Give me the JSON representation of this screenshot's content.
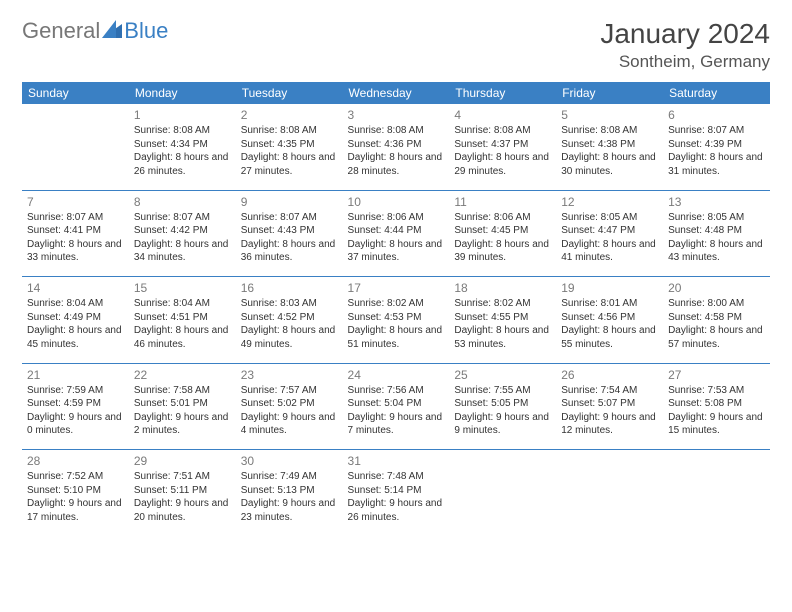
{
  "brand": {
    "part1": "General",
    "part2": "Blue"
  },
  "title": "January 2024",
  "location": "Sontheim, Germany",
  "weekday_header_bg": "#3a80c4",
  "weekdays": [
    "Sunday",
    "Monday",
    "Tuesday",
    "Wednesday",
    "Thursday",
    "Friday",
    "Saturday"
  ],
  "weeks": [
    [
      null,
      {
        "n": "1",
        "sunrise": "8:08 AM",
        "sunset": "4:34 PM",
        "daylight": "8 hours and 26 minutes."
      },
      {
        "n": "2",
        "sunrise": "8:08 AM",
        "sunset": "4:35 PM",
        "daylight": "8 hours and 27 minutes."
      },
      {
        "n": "3",
        "sunrise": "8:08 AM",
        "sunset": "4:36 PM",
        "daylight": "8 hours and 28 minutes."
      },
      {
        "n": "4",
        "sunrise": "8:08 AM",
        "sunset": "4:37 PM",
        "daylight": "8 hours and 29 minutes."
      },
      {
        "n": "5",
        "sunrise": "8:08 AM",
        "sunset": "4:38 PM",
        "daylight": "8 hours and 30 minutes."
      },
      {
        "n": "6",
        "sunrise": "8:07 AM",
        "sunset": "4:39 PM",
        "daylight": "8 hours and 31 minutes."
      }
    ],
    [
      {
        "n": "7",
        "sunrise": "8:07 AM",
        "sunset": "4:41 PM",
        "daylight": "8 hours and 33 minutes."
      },
      {
        "n": "8",
        "sunrise": "8:07 AM",
        "sunset": "4:42 PM",
        "daylight": "8 hours and 34 minutes."
      },
      {
        "n": "9",
        "sunrise": "8:07 AM",
        "sunset": "4:43 PM",
        "daylight": "8 hours and 36 minutes."
      },
      {
        "n": "10",
        "sunrise": "8:06 AM",
        "sunset": "4:44 PM",
        "daylight": "8 hours and 37 minutes."
      },
      {
        "n": "11",
        "sunrise": "8:06 AM",
        "sunset": "4:45 PM",
        "daylight": "8 hours and 39 minutes."
      },
      {
        "n": "12",
        "sunrise": "8:05 AM",
        "sunset": "4:47 PM",
        "daylight": "8 hours and 41 minutes."
      },
      {
        "n": "13",
        "sunrise": "8:05 AM",
        "sunset": "4:48 PM",
        "daylight": "8 hours and 43 minutes."
      }
    ],
    [
      {
        "n": "14",
        "sunrise": "8:04 AM",
        "sunset": "4:49 PM",
        "daylight": "8 hours and 45 minutes."
      },
      {
        "n": "15",
        "sunrise": "8:04 AM",
        "sunset": "4:51 PM",
        "daylight": "8 hours and 46 minutes."
      },
      {
        "n": "16",
        "sunrise": "8:03 AM",
        "sunset": "4:52 PM",
        "daylight": "8 hours and 49 minutes."
      },
      {
        "n": "17",
        "sunrise": "8:02 AM",
        "sunset": "4:53 PM",
        "daylight": "8 hours and 51 minutes."
      },
      {
        "n": "18",
        "sunrise": "8:02 AM",
        "sunset": "4:55 PM",
        "daylight": "8 hours and 53 minutes."
      },
      {
        "n": "19",
        "sunrise": "8:01 AM",
        "sunset": "4:56 PM",
        "daylight": "8 hours and 55 minutes."
      },
      {
        "n": "20",
        "sunrise": "8:00 AM",
        "sunset": "4:58 PM",
        "daylight": "8 hours and 57 minutes."
      }
    ],
    [
      {
        "n": "21",
        "sunrise": "7:59 AM",
        "sunset": "4:59 PM",
        "daylight": "9 hours and 0 minutes."
      },
      {
        "n": "22",
        "sunrise": "7:58 AM",
        "sunset": "5:01 PM",
        "daylight": "9 hours and 2 minutes."
      },
      {
        "n": "23",
        "sunrise": "7:57 AM",
        "sunset": "5:02 PM",
        "daylight": "9 hours and 4 minutes."
      },
      {
        "n": "24",
        "sunrise": "7:56 AM",
        "sunset": "5:04 PM",
        "daylight": "9 hours and 7 minutes."
      },
      {
        "n": "25",
        "sunrise": "7:55 AM",
        "sunset": "5:05 PM",
        "daylight": "9 hours and 9 minutes."
      },
      {
        "n": "26",
        "sunrise": "7:54 AM",
        "sunset": "5:07 PM",
        "daylight": "9 hours and 12 minutes."
      },
      {
        "n": "27",
        "sunrise": "7:53 AM",
        "sunset": "5:08 PM",
        "daylight": "9 hours and 15 minutes."
      }
    ],
    [
      {
        "n": "28",
        "sunrise": "7:52 AM",
        "sunset": "5:10 PM",
        "daylight": "9 hours and 17 minutes."
      },
      {
        "n": "29",
        "sunrise": "7:51 AM",
        "sunset": "5:11 PM",
        "daylight": "9 hours and 20 minutes."
      },
      {
        "n": "30",
        "sunrise": "7:49 AM",
        "sunset": "5:13 PM",
        "daylight": "9 hours and 23 minutes."
      },
      {
        "n": "31",
        "sunrise": "7:48 AM",
        "sunset": "5:14 PM",
        "daylight": "9 hours and 26 minutes."
      },
      null,
      null,
      null
    ]
  ],
  "labels": {
    "sunrise": "Sunrise:",
    "sunset": "Sunset:",
    "daylight": "Daylight:"
  }
}
